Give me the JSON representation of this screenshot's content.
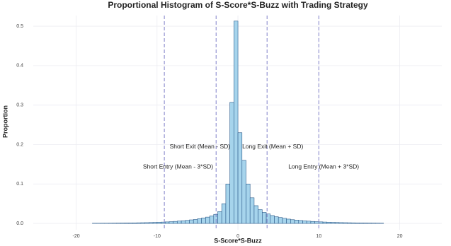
{
  "chart_data": {
    "type": "histogram",
    "title": "Proportional Histogram of S-Score*S-Buzz with Trading Strategy",
    "x_label": "S-Score*S-Buzz",
    "y_label": "Proportion",
    "color": "#a6d4ec",
    "edge_color": "#2a5a8a",
    "grid": true,
    "bins": [
      -18,
      -17.5,
      -17,
      -16.5,
      -16,
      -15.5,
      -15,
      -14.5,
      -14,
      -13.5,
      -13,
      -12.5,
      -12,
      -11.5,
      -11,
      -10.5,
      -10,
      -9.5,
      -9,
      -8.5,
      -8,
      -7.5,
      -7,
      -6.5,
      -6,
      -5.5,
      -5,
      -4.5,
      -4,
      -3.5,
      -3,
      -2.5,
      -2,
      -1.5,
      -1,
      -0.5,
      0,
      0.5,
      1,
      1.5,
      2,
      2.5,
      3,
      3.5,
      4,
      4.5,
      5,
      5.5,
      6,
      6.5,
      7,
      7.5,
      8,
      8.5,
      9,
      9.5,
      10,
      10.5,
      11,
      11.5,
      12,
      12.5,
      13,
      13.5,
      14,
      14.5,
      15,
      15.5,
      16,
      16.5,
      17,
      17.5,
      18
    ],
    "values": [
      0.0005,
      0.0005,
      0.0006,
      0.0006,
      0.0007,
      0.0008,
      0.0009,
      0.001,
      0.0011,
      0.0012,
      0.0014,
      0.0016,
      0.0018,
      0.002,
      0.0023,
      0.0026,
      0.003,
      0.0034,
      0.0039,
      0.0045,
      0.0052,
      0.006,
      0.0068,
      0.0078,
      0.009,
      0.01,
      0.012,
      0.014,
      0.016,
      0.019,
      0.023,
      0.03,
      0.05,
      0.1,
      0.307,
      0.513,
      0.23,
      0.16,
      0.1,
      0.065,
      0.045,
      0.035,
      0.028,
      0.024,
      0.02,
      0.017,
      0.015,
      0.013,
      0.011,
      0.0095,
      0.0085,
      0.0075,
      0.0066,
      0.0058,
      0.0051,
      0.0045,
      0.004,
      0.0035,
      0.0031,
      0.0027,
      0.0024,
      0.0021,
      0.0019,
      0.0017,
      0.0015,
      0.0013,
      0.0012,
      0.0011,
      0.001,
      0.0009,
      0.0008,
      0.0007
    ],
    "xlim": [
      -25.3,
      25.2
    ],
    "ylim": [
      -0.016,
      0.527
    ],
    "xticks": [
      -20,
      -10,
      0,
      10,
      20
    ],
    "yticks": [
      {
        "value": 0,
        "label": "0.0"
      },
      0.1,
      0.2,
      0.3,
      0.4,
      0.5
    ],
    "vlines": [
      -9.1,
      -2.7,
      3.6,
      10.0
    ],
    "vline_color": "#7f7fc8",
    "annotations": [
      {
        "text": "Short Entry (Mean - 3*SD)",
        "x": -7.4,
        "y": 0.143
      },
      {
        "text": "Short Exit (Mean - SD)",
        "x": -4.7,
        "y": 0.194
      },
      {
        "text": "Long Exit (Mean + SD)",
        "x": 4.3,
        "y": 0.194
      },
      {
        "text": "Long Entry (Mean + 3*SD)",
        "x": 10.6,
        "y": 0.143
      }
    ]
  }
}
